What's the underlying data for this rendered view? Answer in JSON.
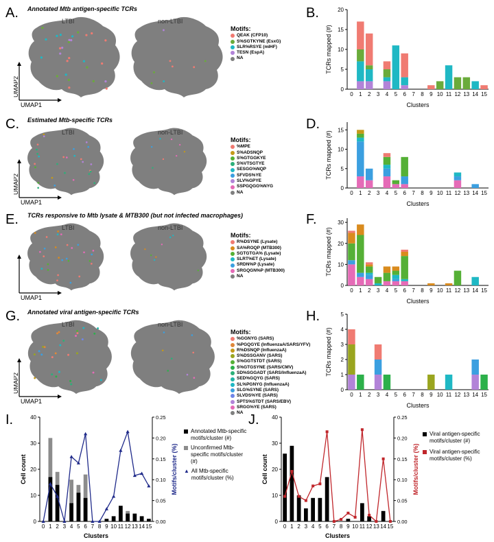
{
  "panel_labels": [
    "A.",
    "B.",
    "C.",
    "D.",
    "E.",
    "F.",
    "G.",
    "H.",
    "I.",
    "J."
  ],
  "rows": [
    {
      "title": "Annotated Mtb antigen-specific TCRs",
      "left_label": "LTBI",
      "right_label": "non-LTBI",
      "axis_x": "UMAP1",
      "axis_y": "UMAP2",
      "legend_title": "Motifs:",
      "motifs": [
        {
          "name": "QEAK (CFP10)",
          "color": "#f07b72"
        },
        {
          "name": "S%SGTKYNE (EsxG)",
          "color": "#6aab3b"
        },
        {
          "name": "SLR%RSYE (mIHF)",
          "color": "#1fb8c4"
        },
        {
          "name": "TESN (EspA)",
          "color": "#b283d8"
        },
        {
          "name": "NA",
          "color": "#7f7f7f"
        }
      ]
    },
    {
      "title": "Estimated Mtb-specific TCRs",
      "left_label": "LTBI",
      "right_label": "non-LTBI",
      "axis_x": "UMAP1",
      "axis_y": "UMAP2",
      "legend_title": "Motifs:",
      "motifs": [
        {
          "name": "%MPE",
          "color": "#f07b72"
        },
        {
          "name": "S%ADSNQP",
          "color": "#c49a1a"
        },
        {
          "name": "S%GTGGKYE",
          "color": "#55b036"
        },
        {
          "name": "S%VTSGTYE",
          "color": "#2cb07a"
        },
        {
          "name": "SESGG%NQP",
          "color": "#1fb8c4"
        },
        {
          "name": "SFVDS%YE",
          "color": "#3b9fe0"
        },
        {
          "name": "SLV%GPYE",
          "color": "#b283d8"
        },
        {
          "name": "SSPGQGG%NYG",
          "color": "#e56bb7"
        },
        {
          "name": "NA",
          "color": "#7f7f7f"
        }
      ]
    },
    {
      "title": "TCRs responsive to Mtb lysate & MTB300 (but not infected macrophages)",
      "left_label": "LTBI",
      "right_label": "non-LTBI",
      "axis_x": "UMAP1",
      "axis_y": "",
      "legend_title": "Motifs:",
      "motifs": [
        {
          "name": "R%DSYNE (Lysate)",
          "color": "#f07b72"
        },
        {
          "name": "SA%ROQP (MTB300)",
          "color": "#d98b1e"
        },
        {
          "name": "SGTGTGA% (Lysate)",
          "color": "#55b036"
        },
        {
          "name": "SLRT%ET (Lysate)",
          "color": "#1fb8c4"
        },
        {
          "name": "SRDN%P (Lysate)",
          "color": "#3b9fe0"
        },
        {
          "name": "SRGQGN%P (MTB300)",
          "color": "#e56bb7"
        },
        {
          "name": "NA",
          "color": "#7f7f7f"
        }
      ]
    },
    {
      "title": "Annotated viral antigen-specific TCRs",
      "left_label": "LTBI",
      "right_label": "non-LTBI",
      "axis_x": "UMAP1",
      "axis_y": "UMAP2",
      "legend_title": "Motifs:",
      "motifs": [
        {
          "name": "%GGNYG (SARS)",
          "color": "#f07b72"
        },
        {
          "name": "%PGQGYE (InfluenzaA/SARS/YFV)",
          "color": "#e0883a"
        },
        {
          "name": "R%DSNQP (InfluenzaA)",
          "color": "#c49a1a"
        },
        {
          "name": "S%DSSGANV (SARS)",
          "color": "#9aa51f"
        },
        {
          "name": "S%GGTSTDT (SARS)",
          "color": "#55b036"
        },
        {
          "name": "S%GTGSYNE (SARS/CMV)",
          "color": "#2cb04a"
        },
        {
          "name": "SD%SGGADT (SARS/InfluenzaA)",
          "color": "#2cb07a"
        },
        {
          "name": "SED%GQYG (SARS)",
          "color": "#20b3a5"
        },
        {
          "name": "SL%PGNYG (InfluenzaA)",
          "color": "#1fb8c4"
        },
        {
          "name": "SLG%SYNE (SARS)",
          "color": "#3b9fe0"
        },
        {
          "name": "SLVDS%YE (SARS)",
          "color": "#6f86e8"
        },
        {
          "name": "SPTS%STDT (SARS/EBV)",
          "color": "#b283d8"
        },
        {
          "name": "SRGG%YE (SARS)",
          "color": "#e56bb7"
        },
        {
          "name": "NA",
          "color": "#7f7f7f"
        }
      ]
    }
  ],
  "chart_data": [
    {
      "id": "B",
      "type": "bar",
      "stacked": true,
      "xlabel": "Clusters",
      "ylabel": "TCRs mapped (#)",
      "ylim": [
        0,
        20
      ],
      "yticks": [
        0,
        5,
        10,
        15,
        20
      ],
      "categories": [
        "0",
        "1",
        "2",
        "3",
        "4",
        "5",
        "6",
        "7",
        "8",
        "9",
        "10",
        "11",
        "12",
        "13",
        "14",
        "15"
      ],
      "series": [
        {
          "name": "TESN (EspA)",
          "color": "#b283d8",
          "values": [
            0,
            2,
            2,
            0,
            2,
            0,
            1,
            0,
            0,
            0,
            0,
            0,
            0,
            0,
            0,
            0
          ]
        },
        {
          "name": "SLR%RSYE (mIHF)",
          "color": "#1fb8c4",
          "values": [
            0,
            5,
            3,
            0,
            1,
            11,
            2,
            0,
            0,
            0,
            0,
            6,
            0,
            0,
            2,
            0
          ]
        },
        {
          "name": "S%SGTKYNE (EsxG)",
          "color": "#6aab3b",
          "values": [
            0,
            3,
            1,
            0,
            2,
            0,
            0,
            0,
            0,
            0,
            2,
            0,
            3,
            3,
            0,
            0
          ]
        },
        {
          "name": "QEAK (CFP10)",
          "color": "#f07b72",
          "values": [
            0,
            7,
            8,
            0,
            2,
            0,
            6,
            0,
            0,
            1,
            0,
            0,
            0,
            0,
            0,
            1
          ]
        }
      ]
    },
    {
      "id": "D",
      "type": "bar",
      "stacked": true,
      "xlabel": "Clusters",
      "ylabel": "TCRs mapped (#)",
      "ylim": [
        0,
        17
      ],
      "yticks": [
        0,
        5,
        10,
        15
      ],
      "categories": [
        "0",
        "1",
        "2",
        "3",
        "4",
        "5",
        "6",
        "7",
        "8",
        "9",
        "10",
        "11",
        "12",
        "13",
        "14",
        "15"
      ],
      "series": [
        {
          "name": "SSPGQGG%NYG",
          "color": "#e56bb7",
          "values": [
            0,
            3,
            2,
            0,
            3,
            1,
            1,
            0,
            0,
            0,
            0,
            0,
            2,
            0,
            0,
            0
          ]
        },
        {
          "name": "SFVDS%YE",
          "color": "#3b9fe0",
          "values": [
            0,
            9,
            3,
            0,
            2,
            0,
            2,
            0,
            0,
            0,
            0,
            0,
            1,
            0,
            1,
            0
          ]
        },
        {
          "name": "SESGG%NQP",
          "color": "#1fb8c4",
          "values": [
            0,
            1,
            0,
            0,
            1,
            0,
            0,
            0,
            0,
            0,
            0,
            0,
            1,
            0,
            0,
            0
          ]
        },
        {
          "name": "S%GTGGKYE",
          "color": "#55b036",
          "values": [
            0,
            1,
            0,
            0,
            2,
            1,
            5,
            0,
            0,
            0,
            0,
            0,
            0,
            0,
            0,
            0
          ]
        },
        {
          "name": "S%ADSNQP",
          "color": "#c49a1a",
          "values": [
            0,
            1,
            0,
            0,
            0,
            0,
            0,
            0,
            0,
            0,
            0,
            0,
            0,
            0,
            0,
            0
          ]
        },
        {
          "name": "%MPE",
          "color": "#f07b72",
          "values": [
            0,
            0,
            0,
            0,
            1,
            0,
            0,
            0,
            0,
            0,
            0,
            0,
            0,
            0,
            0,
            0
          ]
        }
      ]
    },
    {
      "id": "F",
      "type": "bar",
      "stacked": true,
      "xlabel": "Clusters",
      "ylabel": "TCRs mapped (#)",
      "ylim": [
        0,
        32
      ],
      "yticks": [
        0,
        10,
        20,
        30
      ],
      "categories": [
        "0",
        "1",
        "2",
        "3",
        "4",
        "5",
        "6",
        "7",
        "8",
        "9",
        "10",
        "11",
        "12",
        "13",
        "14",
        "15"
      ],
      "series": [
        {
          "name": "SRGQGN%P (MTB300)",
          "color": "#e56bb7",
          "values": [
            10,
            4,
            3,
            0,
            2,
            2,
            2,
            0,
            0,
            0,
            0,
            0,
            0,
            0,
            0,
            0
          ]
        },
        {
          "name": "SRDN%P (Lysate)",
          "color": "#3b9fe0",
          "values": [
            2,
            2,
            2,
            0,
            0,
            1,
            0,
            0,
            0,
            0,
            0,
            0,
            0,
            0,
            0,
            0
          ]
        },
        {
          "name": "SLRT%ET (Lysate)",
          "color": "#1fb8c4",
          "values": [
            0,
            0,
            1,
            1,
            0,
            2,
            1,
            0,
            0,
            0,
            0,
            0,
            0,
            0,
            4,
            0
          ]
        },
        {
          "name": "SGTGTGA% (Lysate)",
          "color": "#55b036",
          "values": [
            8,
            18,
            3,
            3,
            4,
            2,
            11,
            0,
            0,
            0,
            0,
            0,
            7,
            0,
            0,
            0
          ]
        },
        {
          "name": "SA%ROQP (MTB300)",
          "color": "#d98b1e",
          "values": [
            5,
            5,
            1,
            0,
            3,
            2,
            2,
            0,
            0,
            1,
            0,
            1,
            0,
            0,
            0,
            0
          ]
        },
        {
          "name": "R%DSYNE (Lysate)",
          "color": "#f07b72",
          "values": [
            1,
            0,
            1,
            0,
            0,
            0,
            1,
            0,
            0,
            0,
            0,
            0,
            0,
            0,
            0,
            0
          ]
        }
      ]
    },
    {
      "id": "H",
      "type": "bar",
      "stacked": true,
      "xlabel": "Clusters",
      "ylabel": "TCRs mapped (#)",
      "ylim": [
        0,
        5
      ],
      "yticks": [
        0,
        1,
        2,
        3,
        4,
        5
      ],
      "categories": [
        "0",
        "1",
        "2",
        "3",
        "4",
        "5",
        "6",
        "7",
        "8",
        "9",
        "10",
        "11",
        "12",
        "13",
        "14",
        "15"
      ],
      "series": [
        {
          "name": "SPTS%STDT (SARS/EBV)",
          "color": "#b283d8",
          "values": [
            1,
            0,
            0,
            1,
            0,
            0,
            0,
            0,
            0,
            0,
            0,
            0,
            0,
            0,
            1,
            0
          ]
        },
        {
          "name": "SLG%SYNE (SARS)",
          "color": "#3b9fe0",
          "values": [
            0,
            0,
            0,
            1,
            0,
            0,
            0,
            0,
            0,
            0,
            0,
            0,
            0,
            0,
            1,
            0
          ]
        },
        {
          "name": "SL%PGNYG (InfluenzaA)",
          "color": "#1fb8c4",
          "values": [
            0,
            0,
            0,
            0,
            0,
            0,
            0,
            0,
            0,
            0,
            0,
            1,
            0,
            0,
            0,
            0
          ]
        },
        {
          "name": "S%GTGSYNE (SARS/CMV)",
          "color": "#2cb04a",
          "values": [
            0,
            1,
            0,
            0,
            1,
            0,
            0,
            0,
            0,
            0,
            0,
            0,
            0,
            0,
            0,
            1
          ]
        },
        {
          "name": "S%DSSGANV (SARS)",
          "color": "#9aa51f",
          "values": [
            2,
            0,
            0,
            0,
            0,
            0,
            0,
            0,
            0,
            1,
            0,
            0,
            0,
            0,
            0,
            0
          ]
        },
        {
          "name": "%GGNYG (SARS)",
          "color": "#f07b72",
          "values": [
            1,
            0,
            0,
            1,
            0,
            0,
            0,
            0,
            0,
            0,
            0,
            0,
            0,
            0,
            0,
            0
          ]
        }
      ]
    },
    {
      "id": "I",
      "type": "bar+line",
      "xlabel": "Clusters",
      "ylabel": "Cell count",
      "y2label": "Motifs/cluster (%)",
      "ylim": [
        0,
        40
      ],
      "yticks": [
        0,
        10,
        20,
        30,
        40
      ],
      "y2lim": [
        0,
        0.25
      ],
      "y2ticks": [
        "0.00",
        "0.05",
        "0.10",
        "0.15",
        "0.20",
        "0.25"
      ],
      "categories": [
        "0",
        "1",
        "2",
        "3",
        "4",
        "5",
        "6",
        "7",
        "8",
        "9",
        "10",
        "11",
        "12",
        "13",
        "14",
        "15"
      ],
      "bars_black": [
        0,
        17,
        14,
        0,
        7,
        11,
        9,
        0,
        0,
        1,
        2,
        6,
        3,
        3,
        2,
        1
      ],
      "bars_grey": [
        0,
        32,
        19,
        0,
        16,
        14,
        18,
        0,
        0,
        0,
        0,
        0,
        4,
        0,
        0,
        0
      ],
      "line": [
        0,
        0.09,
        0.06,
        0,
        0.155,
        0.14,
        0.21,
        0,
        0,
        0.03,
        0.06,
        0.17,
        0.215,
        0.11,
        0.115,
        0.085
      ],
      "line_color": "#1f2a8a",
      "legend": [
        "Annotated Mtb-specific motifs/cluster (#)",
        "Unconfirmed Mtb-specific motifs/cluster (#)",
        "All Mtb-specific motifs/cluster (%)"
      ]
    },
    {
      "id": "J",
      "type": "bar+line",
      "xlabel": "Clusters",
      "ylabel": "Cell count",
      "y2label": "Motifs/cluster (%)",
      "ylim": [
        0,
        40
      ],
      "yticks": [
        0,
        10,
        20,
        30,
        40
      ],
      "y2lim": [
        0,
        0.25
      ],
      "y2ticks": [
        "0.00",
        "0.05",
        "0.10",
        "0.15",
        "0.20",
        "0.25"
      ],
      "categories": [
        "0",
        "1",
        "2",
        "3",
        "4",
        "5",
        "6",
        "7",
        "8",
        "9",
        "10",
        "11",
        "12",
        "13",
        "14",
        "15"
      ],
      "bars_black": [
        26,
        29,
        10,
        5,
        9,
        9,
        17,
        0,
        0,
        1,
        0,
        7,
        2,
        0,
        4,
        0
      ],
      "line": [
        0.06,
        0.12,
        0.06,
        0.05,
        0.085,
        0.09,
        0.215,
        0,
        0.005,
        0.02,
        0.01,
        0.22,
        0.015,
        0,
        0.15,
        0
      ],
      "line_color": "#c0262b",
      "legend": [
        "Viral antigen-specific motifs/cluster (#)",
        "Viral antigen-specific motifs/cluster (%)"
      ]
    }
  ]
}
